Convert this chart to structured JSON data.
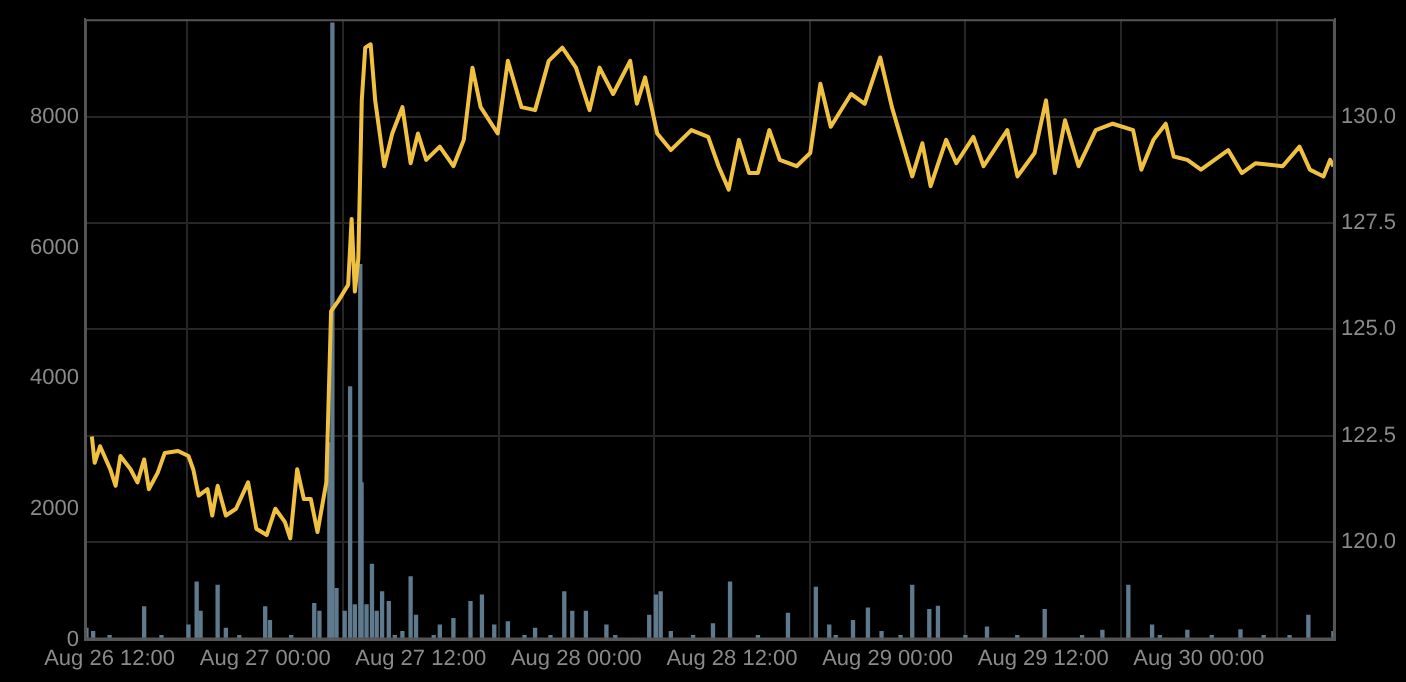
{
  "chart_data": {
    "type": "line",
    "xlim": [
      "--08-26T10:06",
      "--08-30T10:30"
    ],
    "xticks": [
      {
        "value": "--08-26T12:00",
        "label": "Aug 26 12:00"
      },
      {
        "value": "--08-27T00:00",
        "label": "Aug 27 00:00"
      },
      {
        "value": "--08-27T12:00",
        "label": "Aug 27 12:00"
      },
      {
        "value": "--08-28T00:00",
        "label": "Aug 28 00:00"
      },
      {
        "value": "--08-28T12:00",
        "label": "Aug 28 12:00"
      },
      {
        "value": "--08-29T00:00",
        "label": "Aug 29 00:00"
      },
      {
        "value": "--08-29T12:00",
        "label": "Aug 29 12:00"
      },
      {
        "value": "--08-30T00:00",
        "label": "Aug 30 00:00"
      }
    ],
    "ylim": [
      0,
      9500
    ],
    "yticks": [
      0,
      2000,
      4000,
      6000,
      8000
    ],
    "y2lim": [
      117.7,
      132.3
    ],
    "y2ticks": [
      {
        "value": 120,
        "label": "120.0"
      },
      {
        "value": 122.5,
        "label": "122.5"
      },
      {
        "value": 125,
        "label": "125.0"
      },
      {
        "value": 127.5,
        "label": "127.5"
      },
      {
        "value": 130,
        "label": "130.0"
      }
    ],
    "grid": true,
    "legend": false,
    "marker": "none",
    "series": [
      {
        "type": "bar",
        "axis": "y",
        "color": "#5e7a8c",
        "x": [
          "--08-26T10:13",
          "--08-26T10:44",
          "--08-26T12:00",
          "--08-26T14:40",
          "--08-26T16:00",
          "--08-26T18:05",
          "--08-26T18:43",
          "--08-26T19:01",
          "--08-26T20:20",
          "--08-26T20:58",
          "--08-26T22:00",
          "--08-27T00:00",
          "--08-27T00:22",
          "--08-27T02:00",
          "--08-27T03:47",
          "--08-27T04:11",
          "--08-27T04:57",
          "--08-27T05:11",
          "--08-27T05:30",
          "--08-27T06:08",
          "--08-27T06:33",
          "--08-27T06:55",
          "--08-27T07:20",
          "--08-27T07:26",
          "--08-27T07:49",
          "--08-27T08:14",
          "--08-27T08:36",
          "--08-27T09:01",
          "--08-27T09:32",
          "--08-27T10:00",
          "--08-27T10:35",
          "--08-27T11:13",
          "--08-27T11:38",
          "--08-27T13:00",
          "--08-27T13:28",
          "--08-27T14:31",
          "--08-27T15:50",
          "--08-27T16:43",
          "--08-27T17:40",
          "--08-27T18:43",
          "--08-27T20:00",
          "--08-27T20:49",
          "--08-27T22:00",
          "--08-27T23:04",
          "--08-27T23:41",
          "--08-28T00:44",
          "--08-28T02:19",
          "--08-28T03:00",
          "--08-28T05:37",
          "--08-28T06:08",
          "--08-28T06:30",
          "--08-28T07:17",
          "--08-28T09:00",
          "--08-28T10:32",
          "--08-28T11:51",
          "--08-28T14:00",
          "--08-28T16:19",
          "--08-28T18:28",
          "--08-28T19:30",
          "--08-28T20:00",
          "--08-28T21:20",
          "--08-28T22:29",
          "--08-28T23:32",
          "--08-29T01:00",
          "--08-29T01:54",
          "--08-29T03:13",
          "--08-29T03:53",
          "--08-29T06:00",
          "--08-29T07:40",
          "--08-29T10:00",
          "--08-29T12:07",
          "--08-29T15:00",
          "--08-29T16:34",
          "--08-29T18:34",
          "--08-29T20:24",
          "--08-29T21:00",
          "--08-29T23:07",
          "--08-30T01:00",
          "--08-30T03:13",
          "--08-30T05:00",
          "--08-30T07:00",
          "--08-30T08:27",
          "--08-30T10:23"
        ],
        "values": [
          170,
          120,
          60,
          500,
          60,
          220,
          880,
          430,
          830,
          170,
          60,
          500,
          290,
          60,
          550,
          430,
          3010,
          9440,
          780,
          430,
          3870,
          530,
          5740,
          2400,
          530,
          1150,
          430,
          730,
          580,
          60,
          120,
          960,
          370,
          60,
          220,
          320,
          580,
          680,
          220,
          270,
          60,
          170,
          60,
          730,
          430,
          430,
          220,
          60,
          370,
          680,
          730,
          120,
          60,
          240,
          880,
          60,
          400,
          800,
          220,
          60,
          290,
          480,
          120,
          60,
          830,
          460,
          510,
          60,
          190,
          60,
          460,
          60,
          140,
          830,
          220,
          60,
          140,
          60,
          150,
          60,
          60,
          370,
          120
        ]
      },
      {
        "axis": "y2",
        "color": "#f0c040",
        "x": [
          "--08-26T10:38",
          "--08-26T10:51",
          "--08-26T11:16",
          "--08-26T12:03",
          "--08-26T12:28",
          "--08-26T12:50",
          "--08-26T13:37",
          "--08-26T14:09",
          "--08-26T14:40",
          "--08-26T15:02",
          "--08-26T15:43",
          "--08-26T16:15",
          "--08-26T17:17",
          "--08-26T18:05",
          "--08-26T18:27",
          "--08-26T18:52",
          "--08-26T19:33",
          "--08-26T19:55",
          "--08-26T20:20",
          "--08-26T20:58",
          "--08-26T21:45",
          "--08-26T22:41",
          "--08-26T23:19",
          "--08-27T00:07",
          "--08-27T00:47",
          "--08-27T01:31",
          "--08-27T01:56",
          "--08-27T02:28",
          "--08-27T02:59",
          "--08-27T03:31",
          "--08-27T04:02",
          "--08-27T04:43",
          "--08-27T05:05",
          "--08-27T05:37",
          "--08-27T06:24",
          "--08-27T06:40",
          "--08-27T06:55",
          "--08-27T07:11",
          "--08-27T07:27",
          "--08-27T07:43",
          "--08-27T08:08",
          "--08-27T08:29",
          "--08-27T09:11",
          "--08-27T09:48",
          "--08-27T10:35",
          "--08-27T11:13",
          "--08-27T11:47",
          "--08-27T12:25",
          "--08-27T13:28",
          "--08-27T14:31",
          "--08-27T15:19",
          "--08-27T15:59",
          "--08-27T16:37",
          "--08-27T17:56",
          "--08-27T18:43",
          "--08-27T19:46",
          "--08-27T20:49",
          "--08-27T21:52",
          "--08-27T22:55",
          "--08-27T23:58",
          "--08-28T01:01",
          "--08-28T01:47",
          "--08-28T02:50",
          "--08-28T04:09",
          "--08-28T04:40",
          "--08-28T05:18",
          "--08-28T06:14",
          "--08-28T07:17",
          "--08-28T08:52",
          "--08-28T10:10",
          "--08-28T10:58",
          "--08-28T11:45",
          "--08-28T12:32",
          "--08-28T13:19",
          "--08-28T14:00",
          "--08-28T14:53",
          "--08-28T15:41",
          "--08-28T16:59",
          "--08-28T18:02",
          "--08-28T18:49",
          "--08-28T19:37",
          "--08-28T21:11",
          "--08-28T22:14",
          "--08-28T23:26",
          "--08-29T00:20",
          "--08-29T01:54",
          "--08-29T02:41",
          "--08-29T03:19",
          "--08-29T04:31",
          "--08-29T05:18",
          "--08-29T06:37",
          "--08-29T07:24",
          "--08-29T09:14",
          "--08-29T10:01",
          "--08-29T11:20",
          "--08-29T12:13",
          "--08-29T12:54",
          "--08-29T13:41",
          "--08-29T14:44",
          "--08-29T16:03",
          "--08-29T17:22",
          "--08-29T18:56",
          "--08-29T19:34",
          "--08-29T20:30",
          "--08-29T21:27",
          "--08-29T22:04",
          "--08-29T23:07",
          "--08-30T00:10",
          "--08-30T02:16",
          "--08-30T03:19",
          "--08-30T04:22",
          "--08-30T06:28",
          "--08-30T07:46",
          "--08-30T08:34",
          "--08-30T09:37",
          "--08-30T10:08",
          "--08-30T10:23"
        ],
        "values": [
          122.48,
          121.86,
          122.25,
          121.71,
          121.32,
          122.02,
          121.71,
          121.4,
          121.94,
          121.24,
          121.63,
          122.09,
          122.14,
          122.02,
          121.71,
          121.09,
          121.24,
          120.62,
          121.32,
          120.62,
          120.78,
          121.4,
          120.31,
          120.16,
          120.78,
          120.47,
          120.08,
          121.71,
          121.01,
          121.01,
          120.23,
          121.4,
          125.43,
          125.66,
          126.05,
          127.6,
          125.89,
          126.67,
          130.39,
          131.63,
          131.71,
          130.39,
          128.84,
          129.61,
          130.23,
          128.91,
          129.61,
          128.99,
          129.3,
          128.84,
          129.46,
          131.16,
          130.23,
          129.61,
          131.32,
          130.23,
          130.16,
          131.32,
          131.63,
          131.16,
          130.16,
          131.16,
          130.54,
          131.32,
          130.31,
          130.93,
          129.61,
          129.22,
          129.69,
          129.53,
          128.84,
          128.29,
          129.46,
          128.68,
          128.68,
          129.69,
          128.99,
          128.84,
          129.15,
          130.78,
          129.77,
          130.54,
          130.31,
          131.4,
          130.23,
          128.6,
          129.38,
          128.37,
          129.46,
          128.91,
          129.53,
          128.84,
          129.69,
          128.6,
          129.15,
          130.39,
          128.68,
          129.92,
          128.84,
          129.69,
          129.84,
          129.69,
          128.76,
          129.46,
          129.84,
          129.07,
          128.99,
          128.76,
          129.22,
          128.68,
          128.91,
          128.84,
          129.3,
          128.76,
          128.6,
          128.99,
          128.84
        ]
      }
    ]
  }
}
